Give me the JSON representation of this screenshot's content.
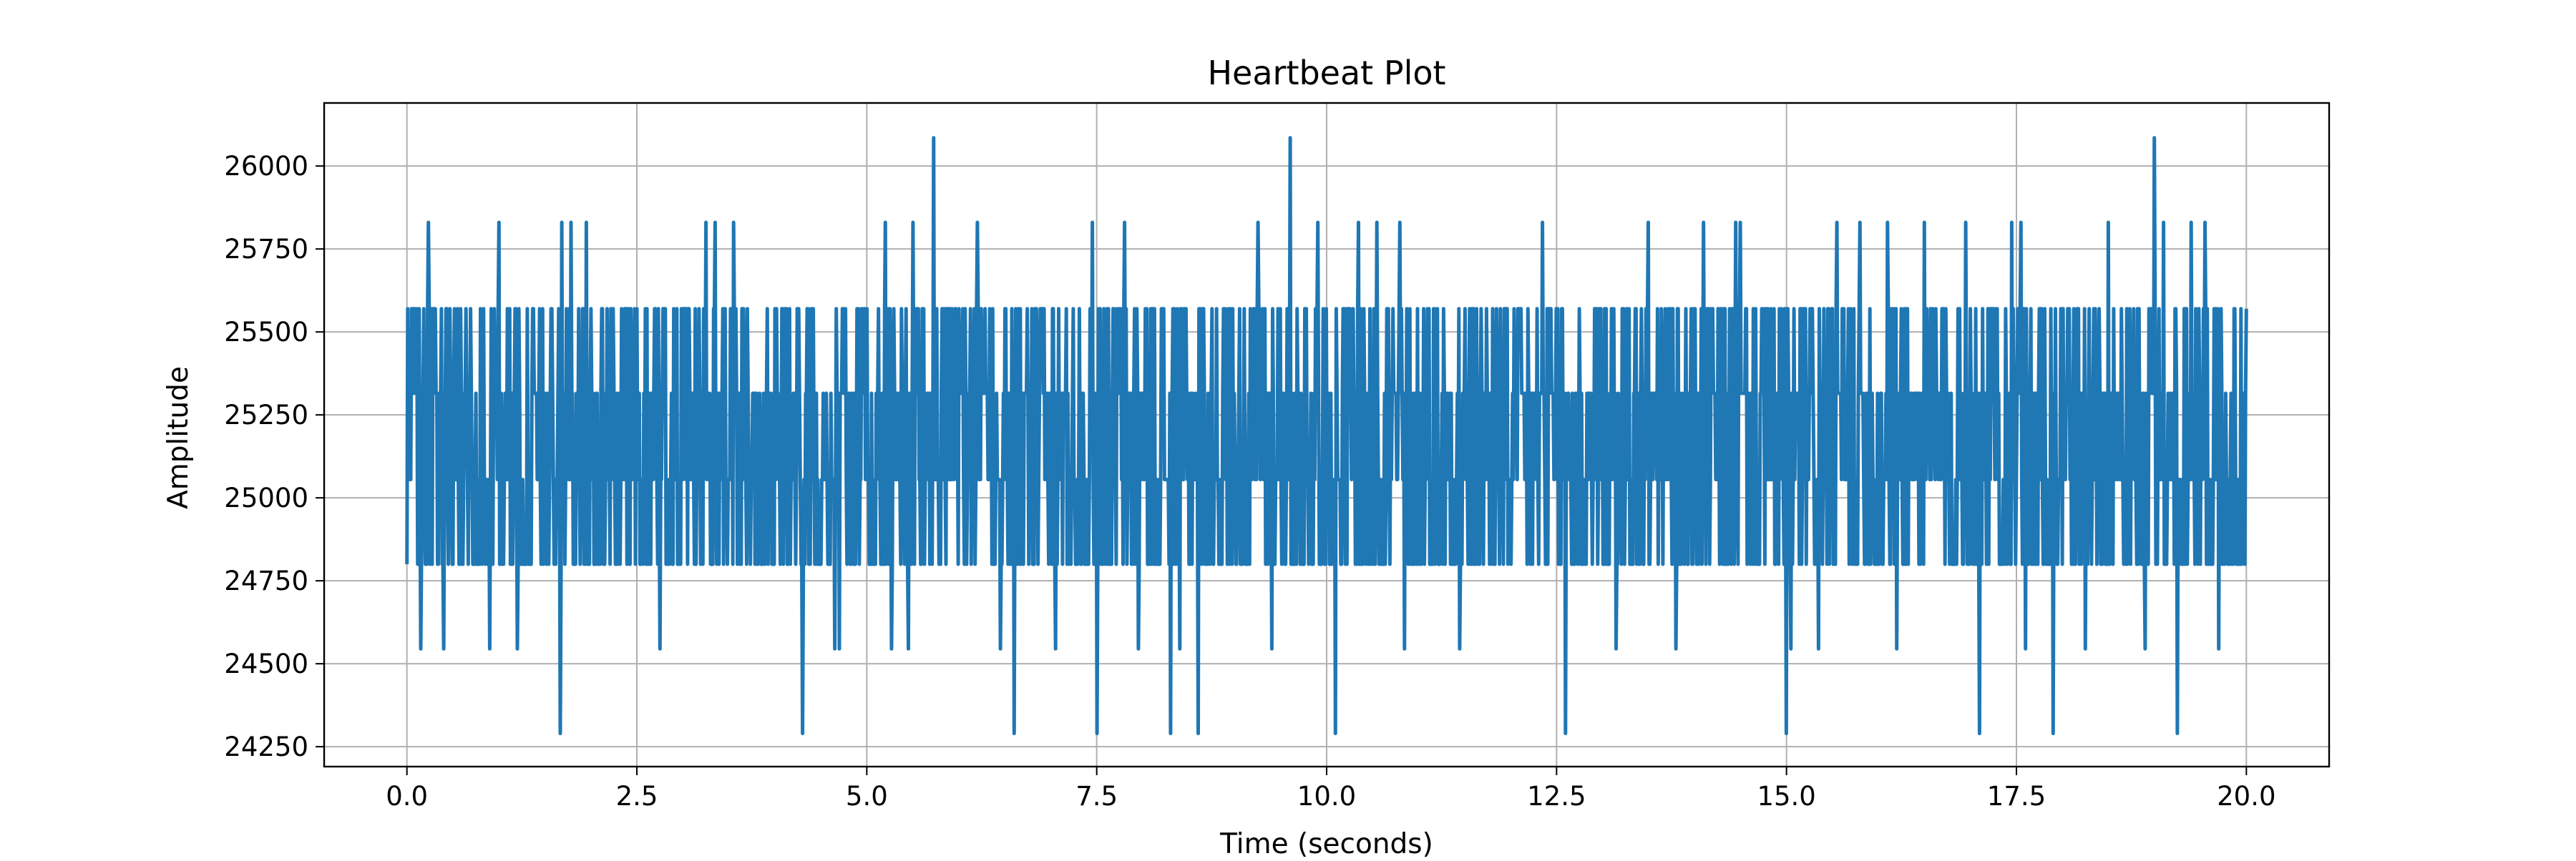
{
  "chart_data": {
    "type": "line",
    "title": "Heartbeat Plot",
    "xlabel": "Time (seconds)",
    "ylabel": "Amplitude",
    "xlim": [
      -0.9,
      20.9
    ],
    "ylim": [
      24190,
      26190
    ],
    "xticks": [
      0.0,
      2.5,
      5.0,
      7.5,
      10.0,
      12.5,
      15.0,
      17.5,
      20.0
    ],
    "xtick_labels": [
      "0.0",
      "2.5",
      "5.0",
      "7.5",
      "10.0",
      "12.5",
      "15.0",
      "17.5",
      "20.0"
    ],
    "yticks": [
      24250,
      24500,
      24750,
      25000,
      25250,
      25500,
      25750,
      26000
    ],
    "ytick_labels": [
      "24250",
      "24500",
      "24750",
      "25000",
      "25250",
      "25500",
      "25750",
      "26000"
    ],
    "grid": true,
    "series": [
      {
        "color": "#1f77b4",
        "x_range": [
          0.0,
          20.0
        ],
        "sample_count": 2400,
        "levels": [
          24290,
          24545,
          24800,
          25055,
          25315,
          25570,
          25830,
          26085
        ],
        "base_range": [
          24800,
          25570
        ],
        "spikes": [
          {
            "x": 0.23,
            "y": 25830
          },
          {
            "x": 1.0,
            "y": 25830
          },
          {
            "x": 1.68,
            "y": 25830
          },
          {
            "x": 1.78,
            "y": 25830
          },
          {
            "x": 1.95,
            "y": 25830
          },
          {
            "x": 3.25,
            "y": 25830
          },
          {
            "x": 3.35,
            "y": 25830
          },
          {
            "x": 3.55,
            "y": 25830
          },
          {
            "x": 4.65,
            "y": 25830
          },
          {
            "x": 4.7,
            "y": 25830
          },
          {
            "x": 5.2,
            "y": 25830
          },
          {
            "x": 5.5,
            "y": 25830
          },
          {
            "x": 5.73,
            "y": 26085
          },
          {
            "x": 6.2,
            "y": 25830
          },
          {
            "x": 7.45,
            "y": 25830
          },
          {
            "x": 7.8,
            "y": 25830
          },
          {
            "x": 8.3,
            "y": 25830
          },
          {
            "x": 9.25,
            "y": 25830
          },
          {
            "x": 9.6,
            "y": 26085
          },
          {
            "x": 9.9,
            "y": 25830
          },
          {
            "x": 10.35,
            "y": 25830
          },
          {
            "x": 10.55,
            "y": 25830
          },
          {
            "x": 10.8,
            "y": 25830
          },
          {
            "x": 12.35,
            "y": 25830
          },
          {
            "x": 12.6,
            "y": 25830
          },
          {
            "x": 13.5,
            "y": 25830
          },
          {
            "x": 14.1,
            "y": 25830
          },
          {
            "x": 14.45,
            "y": 25830
          },
          {
            "x": 14.5,
            "y": 25830
          },
          {
            "x": 15.55,
            "y": 25830
          },
          {
            "x": 15.8,
            "y": 25830
          },
          {
            "x": 16.1,
            "y": 25830
          },
          {
            "x": 16.5,
            "y": 25830
          },
          {
            "x": 16.95,
            "y": 25830
          },
          {
            "x": 17.45,
            "y": 25830
          },
          {
            "x": 17.55,
            "y": 25830
          },
          {
            "x": 18.5,
            "y": 25830
          },
          {
            "x": 19.0,
            "y": 26085
          },
          {
            "x": 19.1,
            "y": 25830
          },
          {
            "x": 19.4,
            "y": 25830
          },
          {
            "x": 19.55,
            "y": 25830
          },
          {
            "x": 0.15,
            "y": 24545
          },
          {
            "x": 0.4,
            "y": 24545
          },
          {
            "x": 0.9,
            "y": 24545
          },
          {
            "x": 1.2,
            "y": 24545
          },
          {
            "x": 1.67,
            "y": 24290
          },
          {
            "x": 2.75,
            "y": 24545
          },
          {
            "x": 4.3,
            "y": 24290
          },
          {
            "x": 4.65,
            "y": 24545
          },
          {
            "x": 4.7,
            "y": 24545
          },
          {
            "x": 5.27,
            "y": 24545
          },
          {
            "x": 5.45,
            "y": 24545
          },
          {
            "x": 6.45,
            "y": 24545
          },
          {
            "x": 6.6,
            "y": 24290
          },
          {
            "x": 7.05,
            "y": 24545
          },
          {
            "x": 7.5,
            "y": 24290
          },
          {
            "x": 7.95,
            "y": 24545
          },
          {
            "x": 8.3,
            "y": 24290
          },
          {
            "x": 8.4,
            "y": 24545
          },
          {
            "x": 8.6,
            "y": 24290
          },
          {
            "x": 9.4,
            "y": 24545
          },
          {
            "x": 10.1,
            "y": 24290
          },
          {
            "x": 10.85,
            "y": 24545
          },
          {
            "x": 11.45,
            "y": 24545
          },
          {
            "x": 12.6,
            "y": 24290
          },
          {
            "x": 13.15,
            "y": 24545
          },
          {
            "x": 13.8,
            "y": 24545
          },
          {
            "x": 15.0,
            "y": 24290
          },
          {
            "x": 15.05,
            "y": 24545
          },
          {
            "x": 15.35,
            "y": 24545
          },
          {
            "x": 16.2,
            "y": 24545
          },
          {
            "x": 17.1,
            "y": 24290
          },
          {
            "x": 17.6,
            "y": 24545
          },
          {
            "x": 17.9,
            "y": 24290
          },
          {
            "x": 18.25,
            "y": 24545
          },
          {
            "x": 18.9,
            "y": 24545
          },
          {
            "x": 19.25,
            "y": 24290
          },
          {
            "x": 19.7,
            "y": 24545
          }
        ]
      }
    ]
  }
}
